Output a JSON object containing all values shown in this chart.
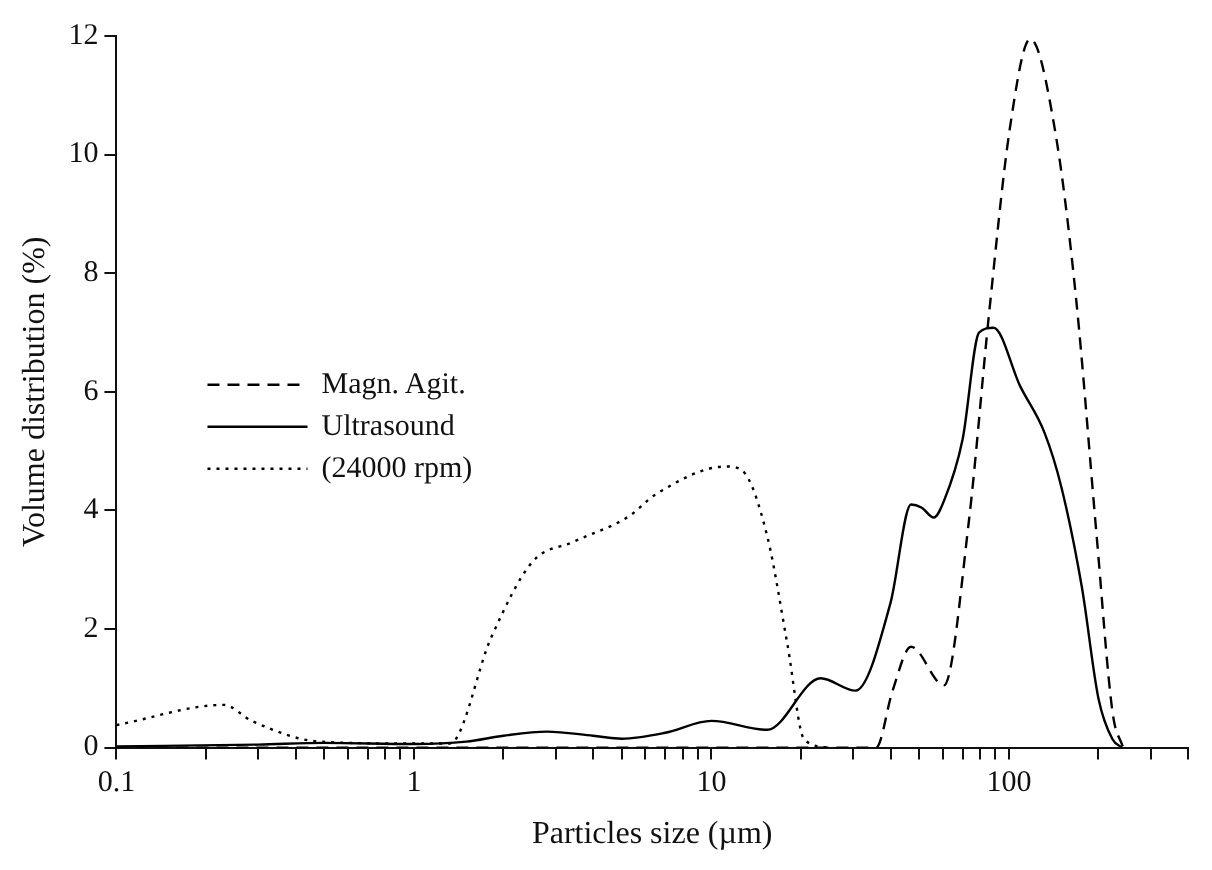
{
  "chart_data": {
    "type": "line",
    "xlabel": "Particles size (µm)",
    "ylabel": "Volume distribution (%)",
    "log": "x",
    "grid": false,
    "legend": "left",
    "marker": "none",
    "xlim": [
      0.1,
      400
    ],
    "xticks": [
      0.1,
      {
        "value": 0.2,
        "label": null
      },
      {
        "value": 0.3,
        "label": null
      },
      {
        "value": 0.4,
        "label": null
      },
      {
        "value": 0.5,
        "label": null
      },
      {
        "value": 0.6,
        "label": null
      },
      {
        "value": 0.7,
        "label": null
      },
      {
        "value": 0.8,
        "label": null
      },
      {
        "value": 0.9,
        "label": null
      },
      1,
      {
        "value": 2,
        "label": null
      },
      {
        "value": 3,
        "label": null
      },
      {
        "value": 4,
        "label": null
      },
      {
        "value": 5,
        "label": null
      },
      {
        "value": 6,
        "label": null
      },
      {
        "value": 7,
        "label": null
      },
      {
        "value": 8,
        "label": null
      },
      {
        "value": 9,
        "label": null
      },
      10,
      {
        "value": 20,
        "label": null
      },
      {
        "value": 30,
        "label": null
      },
      {
        "value": 40,
        "label": null
      },
      {
        "value": 50,
        "label": null
      },
      {
        "value": 60,
        "label": null
      },
      {
        "value": 70,
        "label": null
      },
      {
        "value": 80,
        "label": null
      },
      {
        "value": 90,
        "label": null
      },
      100,
      {
        "value": 200,
        "label": null
      },
      {
        "value": 300,
        "label": null
      },
      {
        "value": 400,
        "label": null
      }
    ],
    "ylim": [
      0,
      12
    ],
    "yticks": [
      0,
      2,
      4,
      6,
      8,
      10,
      12
    ],
    "series": [
      {
        "name": "Magn. Agit.",
        "color": "#000000",
        "line_style": "dashed",
        "x": [
          0.1,
          30,
          35.8,
          40.6,
          46.9,
          60.5,
          73.3,
          85.9,
          100.8,
          118,
          143,
          168,
          197,
          223,
          242
        ],
        "values": [
          0,
          0,
          0,
          0.95,
          1.7,
          1.05,
          3.8,
          7.35,
          10.45,
          11.95,
          10.4,
          7.6,
          3.6,
          0.6,
          0
        ]
      },
      {
        "name": "Ultrasound",
        "color": "#000000",
        "line_style": "solid",
        "x": [
          0.1,
          0.3,
          0.5,
          1,
          1.5,
          2,
          2.8,
          4,
          5,
          7,
          10,
          15.4,
          23.3,
          30.5,
          40,
          46.9,
          50.8,
          55.9,
          60.5,
          69.9,
          79.4,
          88.8,
          109,
          132,
          150,
          176,
          200,
          223,
          240
        ],
        "values": [
          0.02,
          0.05,
          0.08,
          0.06,
          0.1,
          0.2,
          0.27,
          0.2,
          0.15,
          0.25,
          0.45,
          0.3,
          1.17,
          0.96,
          2.44,
          4.1,
          4.05,
          3.88,
          4.16,
          5.2,
          7.0,
          7.08,
          6.1,
          5.3,
          4.4,
          2.7,
          0.83,
          0.14,
          0
        ]
      },
      {
        "name": "(24000 rpm)",
        "color": "#000000",
        "line_style": "dotted",
        "x": [
          0.1,
          0.23,
          0.285,
          0.484,
          1.0,
          1.32,
          1.82,
          2.5,
          3.44,
          5.28,
          6.5,
          11.2,
          12.7,
          15.4,
          18,
          20.5,
          25
        ],
        "values": [
          0.38,
          0.72,
          0.45,
          0.1,
          0.07,
          0.07,
          1.86,
          3.13,
          3.47,
          3.9,
          4.27,
          4.74,
          4.67,
          3.57,
          1.75,
          0.14,
          0
        ]
      }
    ]
  }
}
